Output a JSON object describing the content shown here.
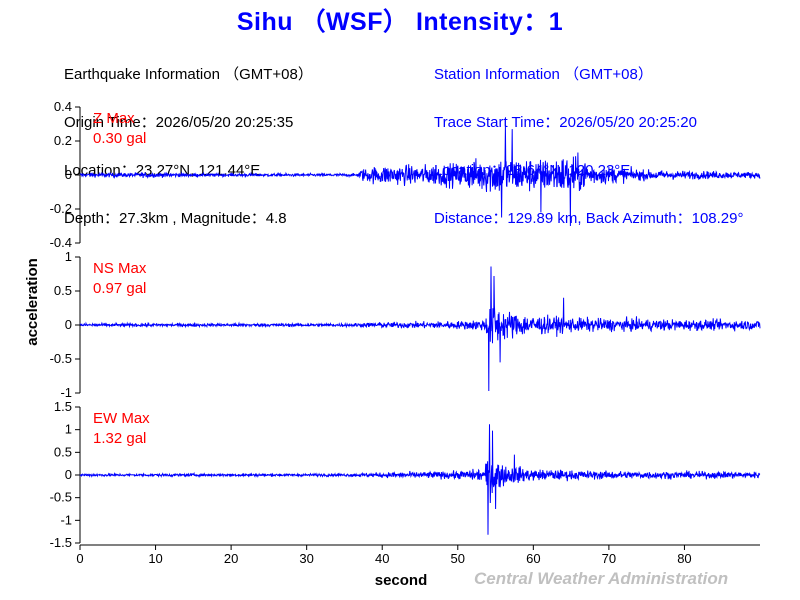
{
  "header": {
    "title": "Sihu （WSF） Intensity：1"
  },
  "earthquake_info": {
    "heading": "Earthquake Information （GMT+08）",
    "origin_time": "Origin Time：2026/05/20 20:25:35",
    "location": "Location：23.27°N, 121.44°E",
    "depth_magnitude": "Depth：27.3km , Magnitude：4.8"
  },
  "station_info": {
    "heading": "Station Information （GMT+08）",
    "trace_start": "Trace Start Time：2026/05/20 20:25:20",
    "location": "Location：23.64°N, 120.23°E",
    "distance": "Distance：129.89 km, Back Azimuth：108.29°"
  },
  "footer": {
    "credit": "Central Weather Administration"
  },
  "colors": {
    "title": "#0000ff",
    "trace": "#0000ff",
    "max_label": "#ff0000",
    "axis": "#000000",
    "credit": "#c0c0c0"
  },
  "chart_data": {
    "type": "line",
    "xlabel": "second",
    "ylabel": "acceleration",
    "xlim": [
      0,
      90
    ],
    "xticks": [
      0,
      10,
      20,
      30,
      40,
      50,
      60,
      70,
      80
    ],
    "panels": [
      {
        "component": "Z",
        "max_title": "Z Max",
        "max_value": "0.30 gal",
        "ylim": [
          -0.4,
          0.4
        ],
        "yticks": [
          -0.4,
          -0.2,
          0,
          0.2,
          0.4
        ],
        "yticklabels": [
          "-0.4",
          "-0.2",
          "0",
          "0.2",
          "0.4"
        ],
        "envelope": [
          {
            "t": 0,
            "a": 0.02
          },
          {
            "t": 10,
            "a": 0.025
          },
          {
            "t": 14,
            "a": 0.015
          },
          {
            "t": 36.8,
            "a": 0.015
          },
          {
            "t": 37,
            "a": 0.06
          },
          {
            "t": 40,
            "a": 0.1
          },
          {
            "t": 45,
            "a": 0.1
          },
          {
            "t": 50,
            "a": 0.12
          },
          {
            "t": 55,
            "a": 0.2
          },
          {
            "t": 58,
            "a": 0.18
          },
          {
            "t": 62,
            "a": 0.16
          },
          {
            "t": 65,
            "a": 0.22
          },
          {
            "t": 68,
            "a": 0.1
          },
          {
            "t": 75,
            "a": 0.05
          },
          {
            "t": 90,
            "a": 0.03
          }
        ],
        "peaks": [
          {
            "t": 56.3,
            "v": 0.29
          },
          {
            "t": 55.8,
            "v": -0.25
          },
          {
            "t": 64.9,
            "v": -0.3
          },
          {
            "t": 57.2,
            "v": 0.27
          },
          {
            "t": 61.0,
            "v": -0.22
          }
        ]
      },
      {
        "component": "NS",
        "max_title": "NS Max",
        "max_value": "0.97 gal",
        "ylim": [
          -1,
          1
        ],
        "yticks": [
          -1,
          -0.5,
          0,
          0.5,
          1
        ],
        "yticklabels": [
          "-1",
          "-0.5",
          "0",
          "0.5",
          "1"
        ],
        "envelope": [
          {
            "t": 0,
            "a": 0.04
          },
          {
            "t": 35,
            "a": 0.04
          },
          {
            "t": 40,
            "a": 0.07
          },
          {
            "t": 50,
            "a": 0.1
          },
          {
            "t": 53.5,
            "a": 0.15
          },
          {
            "t": 54.5,
            "a": 0.65
          },
          {
            "t": 56,
            "a": 0.4
          },
          {
            "t": 58,
            "a": 0.3
          },
          {
            "t": 62,
            "a": 0.22
          },
          {
            "t": 66,
            "a": 0.18
          },
          {
            "t": 75,
            "a": 0.15
          },
          {
            "t": 90,
            "a": 0.12
          }
        ],
        "peaks": [
          {
            "t": 54.4,
            "v": 0.86
          },
          {
            "t": 54.1,
            "v": -0.97
          },
          {
            "t": 54.8,
            "v": 0.72
          },
          {
            "t": 55.6,
            "v": -0.55
          },
          {
            "t": 64.0,
            "v": 0.4
          }
        ]
      },
      {
        "component": "EW",
        "max_title": "EW Max",
        "max_value": "1.32 gal",
        "ylim": [
          -1.5,
          1.5
        ],
        "yticks": [
          -1.5,
          -1,
          -0.5,
          0,
          0.5,
          1,
          1.5
        ],
        "yticklabels": [
          "-1.5",
          "-1",
          "-0.5",
          "0",
          "0.5",
          "1",
          "1.5"
        ],
        "envelope": [
          {
            "t": 0,
            "a": 0.05
          },
          {
            "t": 35,
            "a": 0.05
          },
          {
            "t": 40,
            "a": 0.1
          },
          {
            "t": 50,
            "a": 0.15
          },
          {
            "t": 53.5,
            "a": 0.25
          },
          {
            "t": 54.3,
            "a": 0.9
          },
          {
            "t": 56,
            "a": 0.4
          },
          {
            "t": 60,
            "a": 0.22
          },
          {
            "t": 70,
            "a": 0.15
          },
          {
            "t": 90,
            "a": 0.12
          }
        ],
        "peaks": [
          {
            "t": 54.2,
            "v": 1.12
          },
          {
            "t": 54.0,
            "v": -1.32
          },
          {
            "t": 54.6,
            "v": 0.98
          },
          {
            "t": 55.0,
            "v": -0.75
          },
          {
            "t": 57.5,
            "v": 0.45
          }
        ]
      }
    ]
  }
}
